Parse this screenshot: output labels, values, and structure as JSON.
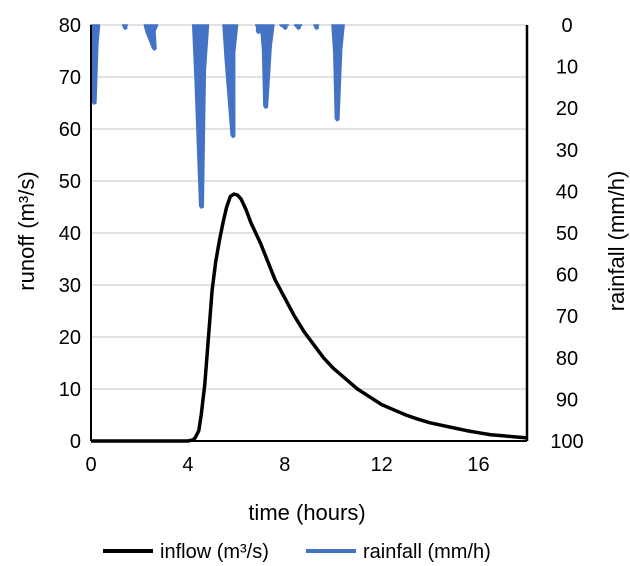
{
  "chart_data": {
    "type": "line",
    "x_label": "time (hours)",
    "y_label": "runoff (m³/s)",
    "y2_label": "rainfall (mm/h)",
    "x_range": [
      0,
      18
    ],
    "y_range": [
      0,
      80
    ],
    "y2_range": [
      0,
      100
    ],
    "y2_inverted": true,
    "grid": true,
    "legend_position": "bottom",
    "x_ticks": [
      "0",
      "4",
      "8",
      "12",
      "16"
    ],
    "y_ticks": [
      "0",
      "10",
      "20",
      "30",
      "40",
      "50",
      "60",
      "70",
      "80"
    ],
    "y2_ticks": [
      "0",
      "10",
      "20",
      "30",
      "40",
      "50",
      "60",
      "70",
      "80",
      "90",
      "100"
    ],
    "series": [
      {
        "name": "inflow (m³/s)",
        "axis": "left",
        "color": "#000000",
        "x": [
          0,
          4.0,
          4.2,
          4.3,
          4.45,
          4.55,
          4.7,
          4.85,
          5.0,
          5.15,
          5.3,
          5.45,
          5.6,
          5.75,
          5.9,
          6.05,
          6.2,
          6.4,
          6.6,
          6.8,
          7.0,
          7.3,
          7.6,
          8.0,
          8.4,
          8.8,
          9.2,
          9.6,
          10.0,
          10.5,
          11.0,
          11.5,
          12.0,
          12.5,
          13.0,
          13.5,
          14.0,
          14.5,
          15.0,
          15.5,
          16.0,
          16.5,
          17.0,
          17.5,
          18.0
        ],
        "y": [
          0,
          0,
          0.2,
          0.6,
          2.0,
          5.0,
          11.0,
          20.0,
          29.0,
          34.5,
          38.5,
          42.0,
          45.0,
          47.0,
          47.5,
          47.3,
          46.5,
          44.5,
          42.0,
          40.0,
          38.0,
          34.5,
          31.0,
          27.5,
          24.0,
          21.0,
          18.5,
          16.0,
          14.0,
          12.0,
          10.0,
          8.5,
          7.0,
          6.0,
          5.0,
          4.2,
          3.5,
          3.0,
          2.5,
          2.0,
          1.6,
          1.2,
          1.0,
          0.8,
          0.6
        ]
      },
      {
        "name": "rainfall (mm/h)",
        "axis": "right",
        "color": "#4472c4",
        "spikes": [
          {
            "x0": 0,
            "x1": 0.35,
            "peak_x": 0.12,
            "peak": 19
          },
          {
            "x0": 1.3,
            "x1": 1.5,
            "peak_x": 1.4,
            "peak": 1
          },
          {
            "x0": 2.2,
            "x1": 2.75,
            "peak_x": 2.6,
            "peak": 6
          },
          {
            "x0": 4.2,
            "x1": 4.85,
            "peak_x": 4.55,
            "peak": 44
          },
          {
            "x0": 5.45,
            "x1": 6.05,
            "peak_x": 5.85,
            "peak": 27
          },
          {
            "x0": 6.8,
            "x1": 7.0,
            "peak_x": 6.9,
            "peak": 2
          },
          {
            "x0": 7.0,
            "x1": 7.55,
            "peak_x": 7.2,
            "peak": 20
          },
          {
            "x0": 7.8,
            "x1": 8.15,
            "peak_x": 8.0,
            "peak": 1
          },
          {
            "x0": 8.4,
            "x1": 8.7,
            "peak_x": 8.55,
            "peak": 1
          },
          {
            "x0": 9.2,
            "x1": 9.4,
            "peak_x": 9.3,
            "peak": 1
          },
          {
            "x0": 9.95,
            "x1": 10.45,
            "peak_x": 10.15,
            "peak": 23
          }
        ]
      }
    ]
  }
}
